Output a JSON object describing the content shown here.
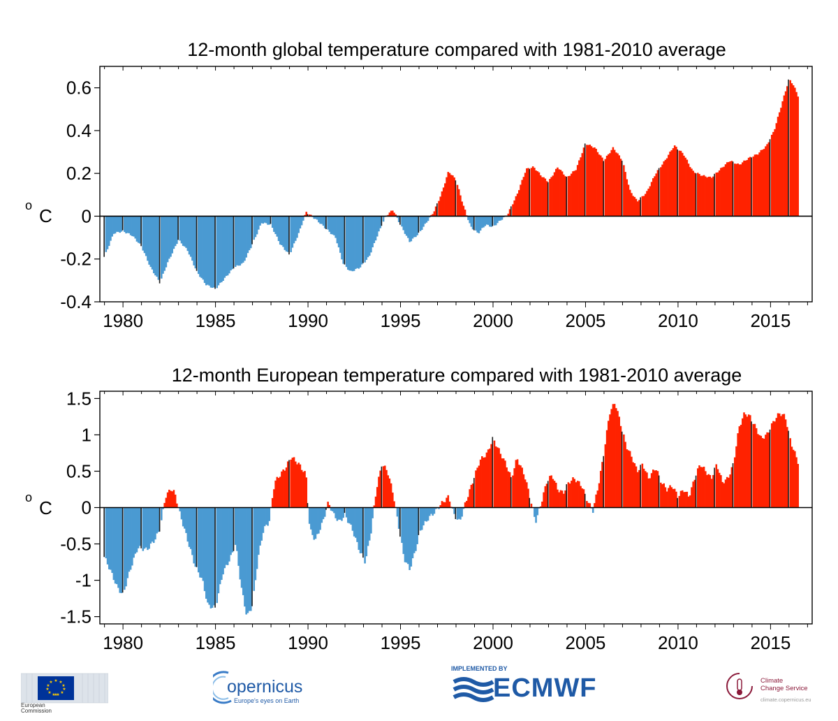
{
  "colors": {
    "warm": "#ff2200",
    "cold": "#4a9ad2",
    "axis": "#000000"
  },
  "chart_data": [
    {
      "type": "bar",
      "title": "12-month global temperature compared with 1981-2010 average",
      "ylabel": "°C",
      "ylim": [
        -0.4,
        0.7
      ],
      "yticks": [
        0.6,
        0.4,
        0.2,
        0,
        -0.2,
        -0.4
      ],
      "ytick_labels": [
        "0.6",
        "0.4",
        "0.2",
        "0",
        "-0.2",
        "-0.4"
      ],
      "xlim": [
        1978.75,
        2017.25
      ],
      "xticks": [
        1980,
        1985,
        1990,
        1995,
        2000,
        2005,
        2010,
        2015
      ],
      "xtick_labels": [
        "1980",
        "1985",
        "1990",
        "1995",
        "2000",
        "2005",
        "2010",
        "2015"
      ],
      "x_start": 1979.0,
      "x_end": 2016.5,
      "step_years": 0.0833,
      "keypoints": [
        [
          1979.0,
          -0.19
        ],
        [
          1979.5,
          -0.08
        ],
        [
          1980.0,
          -0.07
        ],
        [
          1980.5,
          -0.09
        ],
        [
          1981.0,
          -0.14
        ],
        [
          1981.5,
          -0.24
        ],
        [
          1982.0,
          -0.31
        ],
        [
          1982.4,
          -0.22
        ],
        [
          1983.0,
          -0.11
        ],
        [
          1983.5,
          -0.16
        ],
        [
          1984.0,
          -0.26
        ],
        [
          1984.5,
          -0.32
        ],
        [
          1985.0,
          -0.34
        ],
        [
          1985.5,
          -0.29
        ],
        [
          1986.0,
          -0.24
        ],
        [
          1986.5,
          -0.22
        ],
        [
          1987.0,
          -0.13
        ],
        [
          1987.5,
          -0.03
        ],
        [
          1988.0,
          -0.04
        ],
        [
          1988.5,
          -0.13
        ],
        [
          1989.0,
          -0.18
        ],
        [
          1989.5,
          -0.08
        ],
        [
          1989.9,
          0.02
        ],
        [
          1990.2,
          0.0
        ],
        [
          1990.5,
          -0.02
        ],
        [
          1991.0,
          -0.06
        ],
        [
          1991.5,
          -0.1
        ],
        [
          1991.9,
          -0.22
        ],
        [
          1992.3,
          -0.26
        ],
        [
          1992.8,
          -0.24
        ],
        [
          1993.3,
          -0.19
        ],
        [
          1993.8,
          -0.08
        ],
        [
          1994.2,
          0.0
        ],
        [
          1994.6,
          0.03
        ],
        [
          1995.0,
          -0.04
        ],
        [
          1995.5,
          -0.12
        ],
        [
          1996.0,
          -0.08
        ],
        [
          1996.4,
          -0.03
        ],
        [
          1996.8,
          0.02
        ],
        [
          1997.2,
          0.1
        ],
        [
          1997.6,
          0.21
        ],
        [
          1998.0,
          0.17
        ],
        [
          1998.4,
          0.05
        ],
        [
          1998.8,
          -0.05
        ],
        [
          1999.2,
          -0.08
        ],
        [
          1999.6,
          -0.04
        ],
        [
          2000.0,
          -0.05
        ],
        [
          2000.4,
          -0.02
        ],
        [
          2000.8,
          0.01
        ],
        [
          2001.3,
          0.1
        ],
        [
          2001.8,
          0.22
        ],
        [
          2002.2,
          0.23
        ],
        [
          2002.6,
          0.19
        ],
        [
          2003.0,
          0.16
        ],
        [
          2003.5,
          0.23
        ],
        [
          2004.0,
          0.18
        ],
        [
          2004.5,
          0.22
        ],
        [
          2005.0,
          0.34
        ],
        [
          2005.5,
          0.32
        ],
        [
          2006.0,
          0.26
        ],
        [
          2006.5,
          0.32
        ],
        [
          2007.0,
          0.26
        ],
        [
          2007.4,
          0.12
        ],
        [
          2007.8,
          0.07
        ],
        [
          2008.3,
          0.11
        ],
        [
          2008.8,
          0.2
        ],
        [
          2009.3,
          0.26
        ],
        [
          2009.8,
          0.33
        ],
        [
          2010.3,
          0.29
        ],
        [
          2010.8,
          0.21
        ],
        [
          2011.3,
          0.19
        ],
        [
          2011.8,
          0.18
        ],
        [
          2012.3,
          0.22
        ],
        [
          2012.8,
          0.26
        ],
        [
          2013.3,
          0.24
        ],
        [
          2013.8,
          0.27
        ],
        [
          2014.3,
          0.29
        ],
        [
          2014.8,
          0.33
        ],
        [
          2015.2,
          0.4
        ],
        [
          2015.6,
          0.52
        ],
        [
          2016.0,
          0.64
        ],
        [
          2016.2,
          0.62
        ],
        [
          2016.5,
          0.56
        ]
      ]
    },
    {
      "type": "bar",
      "title": "12-month European temperature compared with 1981-2010 average",
      "ylabel": "°C",
      "ylim": [
        -1.6,
        1.6
      ],
      "yticks": [
        1.5,
        1,
        0.5,
        0,
        -0.5,
        -1,
        -1.5
      ],
      "ytick_labels": [
        "1.5",
        "1",
        "0.5",
        "0",
        "-0.5",
        "-1",
        "-1.5"
      ],
      "xlim": [
        1978.75,
        2017.25
      ],
      "xticks": [
        1980,
        1985,
        1990,
        1995,
        2000,
        2005,
        2010,
        2015
      ],
      "xtick_labels": [
        "1980",
        "1985",
        "1990",
        "1995",
        "2000",
        "2005",
        "2010",
        "2015"
      ],
      "x_start": 1979.0,
      "x_end": 2016.5,
      "step_years": 0.0833,
      "keypoints": [
        [
          1979.0,
          -0.68
        ],
        [
          1979.3,
          -0.85
        ],
        [
          1979.7,
          -1.1
        ],
        [
          1980.0,
          -1.2
        ],
        [
          1980.4,
          -0.85
        ],
        [
          1980.8,
          -0.55
        ],
        [
          1981.3,
          -0.58
        ],
        [
          1981.7,
          -0.45
        ],
        [
          1982.0,
          -0.3
        ],
        [
          1982.3,
          0.15
        ],
        [
          1982.6,
          0.26
        ],
        [
          1982.8,
          0.2
        ],
        [
          1983.1,
          -0.1
        ],
        [
          1983.5,
          -0.45
        ],
        [
          1983.9,
          -0.8
        ],
        [
          1984.3,
          -1.0
        ],
        [
          1984.6,
          -1.35
        ],
        [
          1985.0,
          -1.38
        ],
        [
          1985.4,
          -0.9
        ],
        [
          1985.8,
          -0.7
        ],
        [
          1986.1,
          -0.5
        ],
        [
          1986.4,
          -1.1
        ],
        [
          1986.7,
          -1.5
        ],
        [
          1987.0,
          -1.35
        ],
        [
          1987.3,
          -0.7
        ],
        [
          1987.6,
          -0.3
        ],
        [
          1987.9,
          -0.2
        ],
        [
          1988.2,
          0.35
        ],
        [
          1988.5,
          0.45
        ],
        [
          1988.8,
          0.55
        ],
        [
          1989.1,
          0.7
        ],
        [
          1989.5,
          0.6
        ],
        [
          1989.9,
          0.45
        ],
        [
          1990.1,
          -0.3
        ],
        [
          1990.4,
          -0.45
        ],
        [
          1990.8,
          -0.2
        ],
        [
          1991.1,
          0.07
        ],
        [
          1991.4,
          -0.1
        ],
        [
          1991.7,
          -0.2
        ],
        [
          1992.0,
          -0.1
        ],
        [
          1992.4,
          -0.3
        ],
        [
          1992.8,
          -0.6
        ],
        [
          1993.1,
          -0.75
        ],
        [
          1993.4,
          -0.35
        ],
        [
          1993.7,
          0.25
        ],
        [
          1994.0,
          0.6
        ],
        [
          1994.3,
          0.5
        ],
        [
          1994.6,
          0.2
        ],
        [
          1994.9,
          -0.25
        ],
        [
          1995.2,
          -0.7
        ],
        [
          1995.5,
          -0.85
        ],
        [
          1995.8,
          -0.6
        ],
        [
          1996.1,
          -0.3
        ],
        [
          1996.5,
          -0.15
        ],
        [
          1996.9,
          -0.05
        ],
        [
          1997.2,
          0.05
        ],
        [
          1997.6,
          0.15
        ],
        [
          1997.9,
          -0.1
        ],
        [
          1998.2,
          -0.2
        ],
        [
          1998.5,
          0.05
        ],
        [
          1998.9,
          0.35
        ],
        [
          1999.3,
          0.65
        ],
        [
          1999.7,
          0.75
        ],
        [
          2000.0,
          0.95
        ],
        [
          2000.3,
          0.8
        ],
        [
          2000.7,
          0.6
        ],
        [
          2001.0,
          0.4
        ],
        [
          2001.3,
          0.68
        ],
        [
          2001.7,
          0.45
        ],
        [
          2002.0,
          0.15
        ],
        [
          2002.3,
          -0.2
        ],
        [
          2002.6,
          0.05
        ],
        [
          2002.9,
          0.35
        ],
        [
          2003.2,
          0.45
        ],
        [
          2003.5,
          0.25
        ],
        [
          2003.8,
          0.2
        ],
        [
          2004.1,
          0.35
        ],
        [
          2004.4,
          0.4
        ],
        [
          2004.8,
          0.3
        ],
        [
          2005.1,
          0.1
        ],
        [
          2005.4,
          -0.05
        ],
        [
          2005.7,
          0.3
        ],
        [
          2006.0,
          0.75
        ],
        [
          2006.3,
          1.3
        ],
        [
          2006.6,
          1.45
        ],
        [
          2006.9,
          1.15
        ],
        [
          2007.2,
          0.85
        ],
        [
          2007.5,
          0.7
        ],
        [
          2007.8,
          0.5
        ],
        [
          2008.1,
          0.6
        ],
        [
          2008.4,
          0.4
        ],
        [
          2008.8,
          0.55
        ],
        [
          2009.1,
          0.35
        ],
        [
          2009.4,
          0.25
        ],
        [
          2009.7,
          0.3
        ],
        [
          2010.0,
          0.15
        ],
        [
          2010.3,
          0.25
        ],
        [
          2010.6,
          0.15
        ],
        [
          2010.9,
          0.4
        ],
        [
          2011.2,
          0.6
        ],
        [
          2011.5,
          0.5
        ],
        [
          2011.8,
          0.4
        ],
        [
          2012.1,
          0.6
        ],
        [
          2012.4,
          0.35
        ],
        [
          2012.7,
          0.4
        ],
        [
          2013.0,
          0.6
        ],
        [
          2013.3,
          1.1
        ],
        [
          2013.6,
          1.3
        ],
        [
          2013.9,
          1.25
        ],
        [
          2014.2,
          1.1
        ],
        [
          2014.5,
          0.95
        ],
        [
          2014.8,
          1.0
        ],
        [
          2015.2,
          1.2
        ],
        [
          2015.5,
          1.3
        ],
        [
          2015.8,
          1.25
        ],
        [
          2016.1,
          0.9
        ],
        [
          2016.5,
          0.62
        ]
      ]
    }
  ],
  "logos": {
    "eu": {
      "label1": "European",
      "label2": "Commission"
    },
    "copernicus": {
      "name": "opernicus",
      "tagline": "Europe's eyes on Earth"
    },
    "ecmwf": {
      "implemented_by": "IMPLEMENTED BY",
      "name": "ECMWF"
    },
    "c3s": {
      "line1": "Climate",
      "line2": "Change Service",
      "url": "climate.copernicus.eu"
    }
  }
}
